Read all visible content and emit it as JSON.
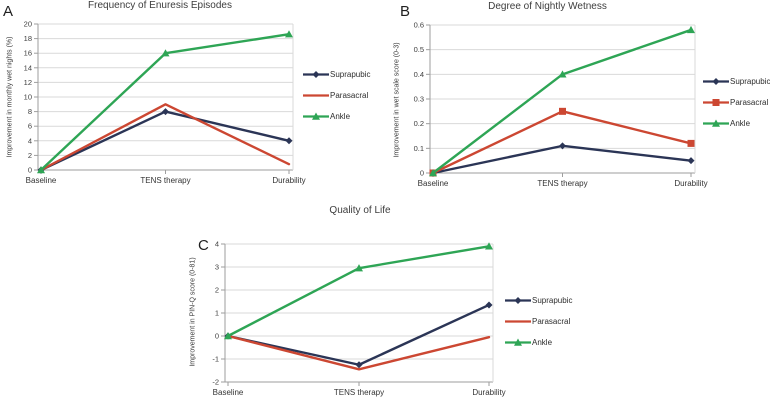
{
  "page": {
    "background": "#ffffff"
  },
  "series_colors": {
    "suprapubic": "#2b3556",
    "parasacral": "#cc4732",
    "ankle": "#2ea555"
  },
  "chart_data": [
    {
      "type": "line",
      "panel": "A",
      "title": "Frequency of Enuresis Episodes",
      "xlabel": "",
      "ylabel": "Improvement in monthly wet nights (%)",
      "categories": [
        "Baseline",
        "TENS therapy",
        "Durability"
      ],
      "ylim": [
        0,
        20
      ],
      "ytick_step": 2,
      "grid": true,
      "legend_position": "right",
      "series": [
        {
          "name": "Suprapubic",
          "color": "#2b3556",
          "marker": "diamond",
          "values": [
            0,
            8,
            4
          ]
        },
        {
          "name": "Parasacral",
          "color": "#cc4732",
          "marker": "none",
          "values": [
            0,
            9,
            0.8
          ]
        },
        {
          "name": "Ankle",
          "color": "#2ea555",
          "marker": "triangle",
          "values": [
            0,
            16,
            18.6
          ]
        }
      ]
    },
    {
      "type": "line",
      "panel": "B",
      "title": "Degree of Nightly Wetness",
      "xlabel": "",
      "ylabel": "Improvement in wet scale score (0-3)",
      "categories": [
        "Baseline",
        "TENS therapy",
        "Durability"
      ],
      "ylim": [
        0,
        0.6
      ],
      "ytick_step": 0.1,
      "grid": true,
      "legend_position": "right",
      "series": [
        {
          "name": "Suprapubic",
          "color": "#2b3556",
          "marker": "diamond",
          "values": [
            0,
            0.11,
            0.05
          ]
        },
        {
          "name": "Parasacral",
          "color": "#cc4732",
          "marker": "square",
          "values": [
            0,
            0.25,
            0.12
          ]
        },
        {
          "name": "Ankle",
          "color": "#2ea555",
          "marker": "triangle",
          "values": [
            0,
            0.4,
            0.58
          ]
        }
      ]
    },
    {
      "type": "line",
      "panel": "C",
      "title": "Quality of Life",
      "xlabel": "",
      "ylabel": "Improvement in PIN-Q score (0-81)",
      "categories": [
        "Baseline",
        "TENS therapy",
        "Durability"
      ],
      "ylim": [
        -2,
        4
      ],
      "ytick_step": 1,
      "grid": true,
      "legend_position": "right",
      "series": [
        {
          "name": "Suprapubic",
          "color": "#2b3556",
          "marker": "diamond",
          "values": [
            0,
            -1.25,
            1.35
          ]
        },
        {
          "name": "Parasacral",
          "color": "#cc4732",
          "marker": "none",
          "values": [
            0,
            -1.45,
            -0.05
          ]
        },
        {
          "name": "Ankle",
          "color": "#2ea555",
          "marker": "triangle",
          "values": [
            0,
            2.95,
            3.9
          ]
        }
      ]
    }
  ]
}
